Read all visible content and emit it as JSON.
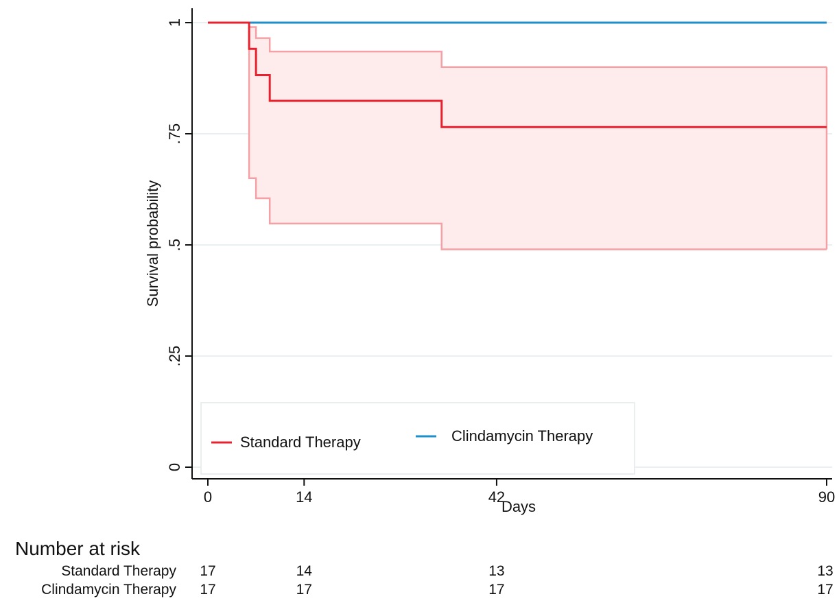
{
  "chart_data": {
    "type": "line",
    "subtype": "kaplan-meier step",
    "title": "",
    "xlabel": "Days",
    "ylabel": "Survival probability",
    "xlim": [
      0,
      90
    ],
    "ylim": [
      0,
      1
    ],
    "x_ticks": [
      {
        "value": 0,
        "label": "0"
      },
      {
        "value": 14,
        "label": "14"
      },
      {
        "value": 42,
        "label": "42"
      },
      {
        "value": 90,
        "label": "90"
      }
    ],
    "y_ticks": [
      {
        "value": 0,
        "label": "0"
      },
      {
        "value": 0.25,
        "label": ".25"
      },
      {
        "value": 0.5,
        "label": ".5"
      },
      {
        "value": 0.75,
        "label": ".75"
      },
      {
        "value": 1,
        "label": "1"
      }
    ],
    "grid": "horizontal",
    "legend_position": "bottom-inside",
    "series": [
      {
        "name": "Standard Therapy",
        "color": "#e8212f",
        "ci_color": "#f4a0a4",
        "ci_fill": "#fdeceb",
        "steps": [
          {
            "x": 0,
            "y": 1.0
          },
          {
            "x": 6,
            "y": 0.941
          },
          {
            "x": 7,
            "y": 0.882
          },
          {
            "x": 9,
            "y": 0.824
          },
          {
            "x": 34,
            "y": 0.765
          },
          {
            "x": 90,
            "y": 0.765
          }
        ],
        "ci_lower": [
          {
            "x": 0,
            "y": 1.0
          },
          {
            "x": 6,
            "y": 0.65
          },
          {
            "x": 7,
            "y": 0.605
          },
          {
            "x": 9,
            "y": 0.548
          },
          {
            "x": 34,
            "y": 0.49
          },
          {
            "x": 90,
            "y": 0.49
          }
        ],
        "ci_upper": [
          {
            "x": 0,
            "y": 1.0
          },
          {
            "x": 6,
            "y": 0.99
          },
          {
            "x": 7,
            "y": 0.965
          },
          {
            "x": 9,
            "y": 0.935
          },
          {
            "x": 34,
            "y": 0.9
          },
          {
            "x": 90,
            "y": 0.9
          }
        ]
      },
      {
        "name": "Clindamycin Therapy",
        "color": "#1f8fc9",
        "steps": [
          {
            "x": 0,
            "y": 1.0
          },
          {
            "x": 90,
            "y": 1.0
          }
        ]
      }
    ],
    "risk_table": {
      "heading": "Number at risk",
      "time_points": [
        0,
        14,
        42,
        90
      ],
      "rows": [
        {
          "label": "Standard Therapy",
          "values": [
            "17",
            "14",
            "13",
            "13"
          ]
        },
        {
          "label": "Clindamycin Therapy",
          "values": [
            "17",
            "17",
            "17",
            "17"
          ]
        }
      ]
    }
  }
}
